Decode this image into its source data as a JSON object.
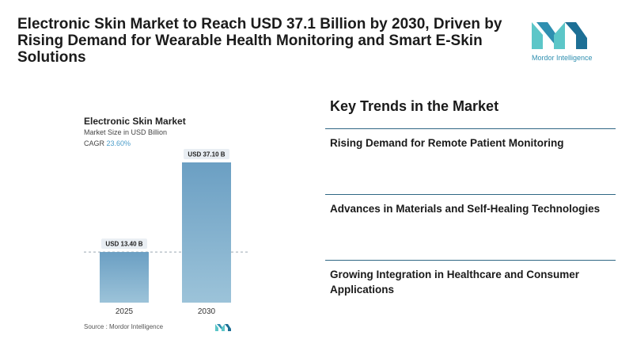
{
  "headline": "Electronic Skin Market to Reach USD 37.1 Billion by 2030, Driven by Rising Demand for Wearable Health Monitoring and Smart E-Skin Solutions",
  "brand": {
    "name": "Mordor Intelligence",
    "colors": [
      "#2f8fb0",
      "#5cc6c8",
      "#1d6f95"
    ]
  },
  "chart": {
    "title": "Electronic Skin Market",
    "subtitle": "Market Size in USD Billion",
    "cagr_label": "CAGR",
    "cagr_value": "23.60%",
    "source": "Source :  Mordor Intelligence"
  },
  "chart_data": {
    "type": "bar",
    "categories": [
      "2025",
      "2030"
    ],
    "values": [
      13.4,
      37.1
    ],
    "data_labels": [
      "USD 13.40 B",
      "USD 37.10 B"
    ],
    "title": "Electronic Skin Market",
    "ylabel": "Market Size in USD Billion",
    "ylim": [
      0,
      37.1
    ],
    "reference_line": "dashed line at 2025 value",
    "colors": {
      "bar_top": "#6b9fc3",
      "bar_bottom": "#9cc3d9",
      "label_bg": "#e9eef3"
    }
  },
  "trends": {
    "title": "Key Trends in the Market",
    "items": [
      "Rising Demand for Remote Patient Monitoring",
      "Advances in Materials and Self-Healing Technologies",
      "Growing Integration in Healthcare and Consumer Applications"
    ]
  }
}
